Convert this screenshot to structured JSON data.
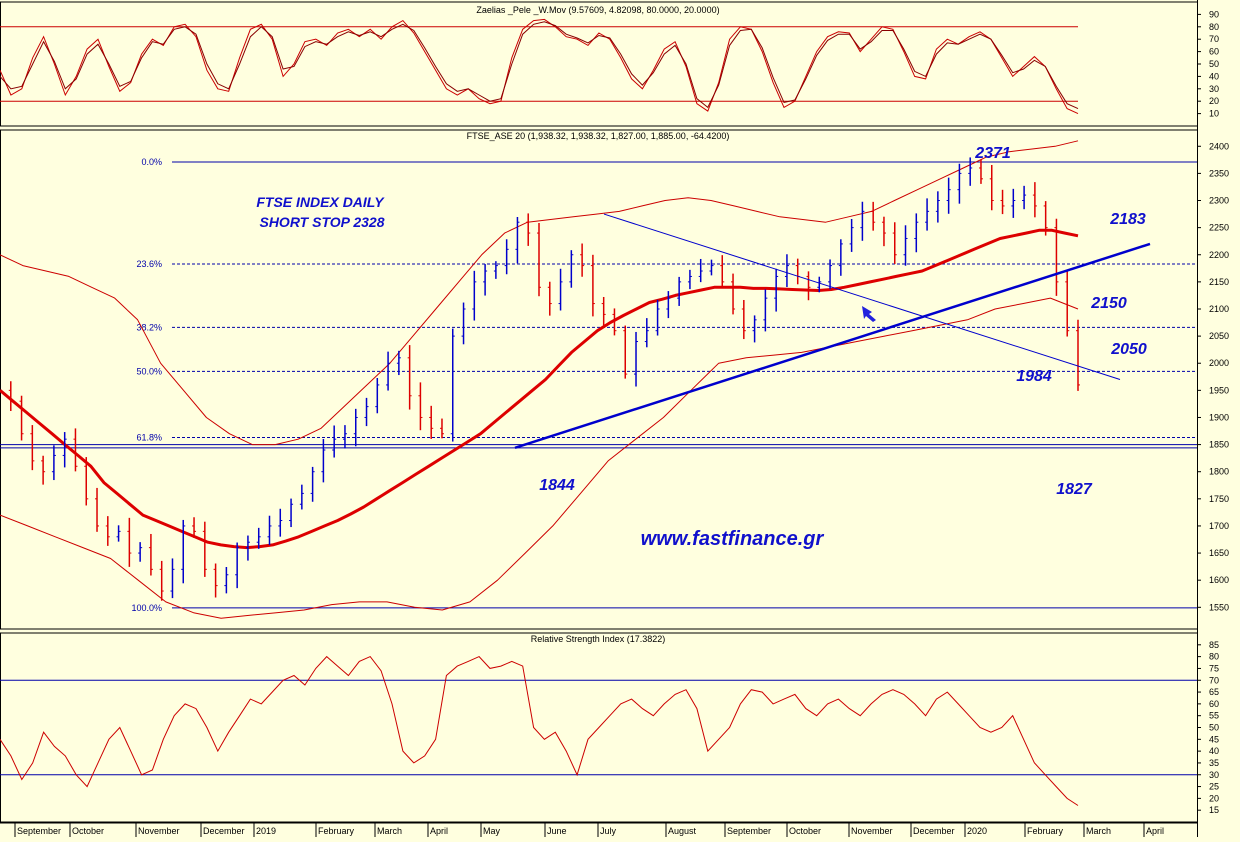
{
  "colors": {
    "background": "#ffffdf",
    "price_up": "#0000cc",
    "price_down": "#dd0000",
    "moving_average": "#dd0000",
    "envelope": "#cc0000",
    "trendline": "#0000cc",
    "annotation_text": "#1010cc",
    "grid_line": "#0000aa"
  },
  "chart_data": [
    {
      "type": "line",
      "title": "Zaelias _Pele _W.Mov (9.57609, 4.82098, 80.0000, 20.0000)",
      "ylim": [
        0,
        100
      ],
      "y_ticks": [
        10,
        20,
        30,
        40,
        50,
        60,
        70,
        80,
        90
      ],
      "reference_lines": [
        80,
        20
      ],
      "series": [
        {
          "role": "fast",
          "values": [
            45,
            25,
            30,
            55,
            72,
            50,
            25,
            40,
            62,
            70,
            48,
            28,
            35,
            58,
            70,
            65,
            80,
            82,
            72,
            45,
            30,
            28,
            55,
            78,
            82,
            70,
            40,
            50,
            68,
            70,
            65,
            75,
            78,
            72,
            78,
            70,
            80,
            85,
            75,
            60,
            45,
            30,
            25,
            30,
            22,
            18,
            20,
            55,
            78,
            85,
            86,
            80,
            72,
            70,
            65,
            75,
            70,
            55,
            38,
            30,
            45,
            62,
            68,
            48,
            18,
            12,
            35,
            70,
            80,
            78,
            60,
            35,
            15,
            20,
            40,
            60,
            72,
            76,
            75,
            60,
            70,
            80,
            78,
            60,
            40,
            38,
            62,
            70,
            66,
            72,
            76,
            70,
            55,
            40,
            48,
            56,
            48,
            30,
            14,
            10
          ],
          "style": "thin-red"
        },
        {
          "role": "slow",
          "values": [
            40,
            30,
            32,
            50,
            68,
            52,
            30,
            38,
            58,
            66,
            50,
            32,
            36,
            55,
            68,
            66,
            78,
            80,
            74,
            50,
            34,
            30,
            50,
            72,
            80,
            72,
            46,
            48,
            64,
            68,
            66,
            72,
            76,
            73,
            76,
            72,
            78,
            82,
            77,
            63,
            48,
            34,
            28,
            30,
            25,
            20,
            22,
            50,
            74,
            82,
            84,
            81,
            74,
            71,
            67,
            73,
            71,
            58,
            42,
            33,
            43,
            58,
            65,
            50,
            22,
            15,
            33,
            65,
            77,
            78,
            63,
            39,
            19,
            21,
            38,
            57,
            69,
            74,
            74,
            62,
            68,
            77,
            77,
            62,
            44,
            40,
            58,
            67,
            66,
            70,
            74,
            70,
            57,
            43,
            46,
            53,
            48,
            32,
            18,
            14
          ],
          "style": "thin-darkred"
        }
      ]
    },
    {
      "type": "candlestick",
      "title": "FTSE_ASE 20 (1,938.32, 1,938.32, 1,827.00, 1,885.00, -64.4200)",
      "ylim": [
        1510,
        2430
      ],
      "y_ticks": [
        1550,
        1600,
        1650,
        1700,
        1750,
        1800,
        1850,
        1900,
        1950,
        2000,
        2050,
        2100,
        2150,
        2200,
        2250,
        2300,
        2350,
        2400
      ],
      "x_labels": [
        "September",
        "October",
        "November",
        "December",
        "2019",
        "February",
        "March",
        "April",
        "May",
        "June",
        "July",
        "August",
        "September",
        "October",
        "November",
        "December",
        "2020",
        "February",
        "March",
        "April"
      ],
      "close_series": [
        1950,
        1930,
        1870,
        1820,
        1800,
        1830,
        1860,
        1810,
        1750,
        1700,
        1680,
        1690,
        1650,
        1660,
        1620,
        1580,
        1620,
        1700,
        1690,
        1620,
        1590,
        1610,
        1660,
        1670,
        1680,
        1700,
        1710,
        1740,
        1760,
        1800,
        1840,
        1860,
        1870,
        1900,
        1920,
        1960,
        2000,
        2010,
        1940,
        1900,
        1880,
        1870,
        2050,
        2100,
        2150,
        2170,
        2180,
        2210,
        2260,
        2240,
        2140,
        2110,
        2150,
        2200,
        2180,
        2110,
        2090,
        2060,
        1980,
        2040,
        2060,
        2100,
        2120,
        2150,
        2160,
        2170,
        2180,
        2150,
        2100,
        2060,
        2080,
        2120,
        2160,
        2180,
        2160,
        2140,
        2150,
        2180,
        2220,
        2250,
        2280,
        2260,
        2240,
        2200,
        2230,
        2260,
        2280,
        2300,
        2320,
        2350,
        2360,
        2340,
        2300,
        2290,
        2300,
        2310,
        2290,
        2250,
        2150,
        2060,
        1960
      ],
      "moving_average": [
        1950,
        1930,
        1910,
        1890,
        1870,
        1850,
        1830,
        1810,
        1780,
        1760,
        1740,
        1720,
        1710,
        1700,
        1690,
        1680,
        1670,
        1665,
        1662,
        1660,
        1662,
        1665,
        1672,
        1680,
        1690,
        1700,
        1710,
        1722,
        1735,
        1750,
        1765,
        1780,
        1795,
        1810,
        1825,
        1840,
        1855,
        1870,
        1890,
        1910,
        1930,
        1950,
        1970,
        1995,
        2020,
        2040,
        2060,
        2075,
        2088,
        2100,
        2112,
        2118,
        2125,
        2130,
        2135,
        2140,
        2140,
        2140,
        2138,
        2138,
        2137,
        2136,
        2135,
        2134,
        2136,
        2140,
        2145,
        2150,
        2155,
        2160,
        2165,
        2170,
        2180,
        2190,
        2200,
        2210,
        2220,
        2230,
        2235,
        2240,
        2245,
        2245,
        2240,
        2235
      ],
      "upper_band": [
        2200,
        2180,
        2170,
        2160,
        2140,
        2120,
        2080,
        2000,
        1950,
        1900,
        1870,
        1850,
        1850,
        1860,
        1880,
        1920,
        1960,
        2000,
        2050,
        2100,
        2150,
        2200,
        2240,
        2260,
        2265,
        2270,
        2275,
        2280,
        2290,
        2300,
        2305,
        2300,
        2290,
        2280,
        2270,
        2265,
        2260,
        2270,
        2280,
        2300,
        2320,
        2340,
        2360,
        2380,
        2390,
        2395,
        2400,
        2410
      ],
      "lower_band": [
        1720,
        1700,
        1680,
        1660,
        1640,
        1600,
        1560,
        1540,
        1530,
        1535,
        1540,
        1545,
        1555,
        1560,
        1560,
        1550,
        1545,
        1560,
        1600,
        1650,
        1700,
        1760,
        1820,
        1860,
        1900,
        1950,
        2000,
        2010,
        2015,
        2020,
        2030,
        2040,
        2050,
        2060,
        2070,
        2080,
        2100,
        2110,
        2120,
        2100
      ],
      "fib_levels": [
        {
          "label": "0.0%",
          "value": 2371
        },
        {
          "label": "23.6%",
          "value": 2183
        },
        {
          "label": "38.2%",
          "value": 2066
        },
        {
          "label": "50.0%",
          "value": 1985
        },
        {
          "label": "61.8%",
          "value": 1863
        },
        {
          "label": "100.0%",
          "value": 1549
        }
      ],
      "extra_levels": [
        1844,
        1850
      ],
      "annotations": {
        "title_line1": "FTSE INDEX DAILY",
        "title_line2": "SHORT STOP 2328",
        "website": "www.fastfinance.gr",
        "label_2371": "2371",
        "label_2183": "2183",
        "label_2150": "2150",
        "label_2050": "2050",
        "label_1984": "1984",
        "label_1844": "1844",
        "label_1827": "1827"
      }
    },
    {
      "type": "line",
      "title": "Relative Strength Index (17.3822)",
      "ylim": [
        10,
        90
      ],
      "y_ticks": [
        15,
        20,
        25,
        30,
        35,
        40,
        45,
        50,
        55,
        60,
        65,
        70,
        75,
        80,
        85
      ],
      "reference_lines": [
        70,
        30
      ],
      "series": [
        {
          "values": [
            45,
            38,
            28,
            35,
            48,
            42,
            38,
            30,
            25,
            35,
            45,
            50,
            40,
            30,
            32,
            45,
            55,
            60,
            58,
            50,
            40,
            48,
            55,
            62,
            60,
            65,
            70,
            72,
            68,
            75,
            80,
            76,
            72,
            78,
            80,
            74,
            60,
            40,
            35,
            38,
            45,
            72,
            76,
            78,
            80,
            75,
            76,
            78,
            76,
            50,
            45,
            48,
            40,
            30,
            45,
            50,
            55,
            60,
            62,
            58,
            55,
            60,
            64,
            66,
            58,
            40,
            45,
            50,
            60,
            66,
            65,
            60,
            62,
            64,
            58,
            55,
            60,
            62,
            58,
            55,
            60,
            64,
            66,
            64,
            60,
            55,
            62,
            65,
            60,
            55,
            50,
            48,
            50,
            55,
            45,
            35,
            30,
            25,
            20,
            17
          ],
          "style": "thin-red"
        }
      ]
    }
  ]
}
